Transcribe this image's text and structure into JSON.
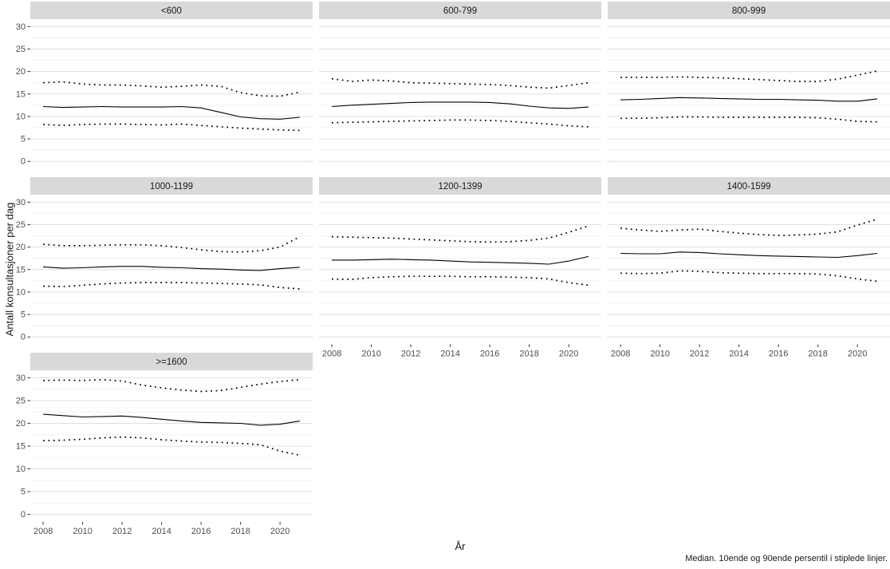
{
  "figure": {
    "ylabel": "Antall konsultasjoner per dag",
    "xlabel": "År",
    "caption": "Median. 10ende og 90ende persentil i stiplede linjer."
  },
  "chart_data": {
    "type": "line",
    "title": "",
    "xlabel": "År",
    "ylabel": "Antall konsultasjoner per dag",
    "caption": "Median. 10ende og 90ende persentil i stiplede linjer.",
    "facet_layout": "3 columns, 7 panels",
    "legend": "none",
    "grid": "horizontal-only",
    "x": [
      2008,
      2009,
      2010,
      2011,
      2012,
      2013,
      2014,
      2015,
      2016,
      2017,
      2018,
      2019,
      2020,
      2021
    ],
    "x_ticks": [
      2008,
      2010,
      2012,
      2014,
      2016,
      2018,
      2020
    ],
    "y_ticks": [
      0,
      5,
      10,
      15,
      20,
      25,
      30
    ],
    "xlim": [
      2007.35,
      2021.65
    ],
    "ylim": [
      -1.65,
      31.65
    ],
    "line_styles": {
      "median": "solid",
      "p10": "dotted",
      "p90": "dotted"
    },
    "colors": {
      "line": "#000000",
      "strip_bg": "#d9d9d9",
      "strip_text": "#1a1a1a",
      "grid_major": "#e0e0e0",
      "grid_minor": "#f0f0f0",
      "tick_label": "#4d4d4d",
      "background": "#ffffff"
    },
    "facets": [
      {
        "label": "<600",
        "series": {
          "p90": [
            17.5,
            17.7,
            17.2,
            17.0,
            17.0,
            16.8,
            16.5,
            16.7,
            17.0,
            16.7,
            15.3,
            14.6,
            14.5,
            15.4
          ],
          "median": [
            12.2,
            12.0,
            12.1,
            12.2,
            12.1,
            12.1,
            12.1,
            12.2,
            11.9,
            10.9,
            9.9,
            9.5,
            9.4,
            9.8
          ],
          "p10": [
            8.2,
            8.0,
            8.2,
            8.3,
            8.3,
            8.2,
            8.1,
            8.3,
            8.0,
            7.7,
            7.4,
            7.2,
            7.0,
            6.9
          ]
        }
      },
      {
        "label": "600-799",
        "series": {
          "p90": [
            18.4,
            17.8,
            18.1,
            17.9,
            17.5,
            17.4,
            17.3,
            17.2,
            17.1,
            16.9,
            16.5,
            16.3,
            16.9,
            17.5
          ],
          "median": [
            12.2,
            12.5,
            12.7,
            12.9,
            13.1,
            13.2,
            13.2,
            13.2,
            13.1,
            12.8,
            12.3,
            11.9,
            11.8,
            12.1
          ],
          "p10": [
            8.6,
            8.7,
            8.8,
            8.9,
            9.0,
            9.1,
            9.2,
            9.2,
            9.1,
            8.9,
            8.6,
            8.3,
            7.9,
            7.7
          ]
        }
      },
      {
        "label": "800-999",
        "series": {
          "p90": [
            18.7,
            18.7,
            18.7,
            18.8,
            18.7,
            18.6,
            18.4,
            18.2,
            18.0,
            17.8,
            17.8,
            18.3,
            19.2,
            20.1
          ],
          "median": [
            13.7,
            13.8,
            14.0,
            14.2,
            14.1,
            14.0,
            13.9,
            13.8,
            13.8,
            13.7,
            13.6,
            13.4,
            13.4,
            13.9
          ],
          "p10": [
            9.6,
            9.6,
            9.7,
            9.9,
            9.9,
            9.8,
            9.8,
            9.8,
            9.8,
            9.8,
            9.7,
            9.4,
            8.9,
            8.8
          ]
        }
      },
      {
        "label": "1000-1199",
        "series": {
          "p90": [
            20.6,
            20.3,
            20.3,
            20.4,
            20.5,
            20.5,
            20.3,
            19.9,
            19.4,
            19.0,
            18.9,
            19.2,
            20.0,
            22.3
          ],
          "median": [
            15.6,
            15.3,
            15.4,
            15.6,
            15.7,
            15.7,
            15.5,
            15.4,
            15.2,
            15.1,
            14.9,
            14.8,
            15.2,
            15.5
          ],
          "p10": [
            11.3,
            11.2,
            11.5,
            11.8,
            12.0,
            12.1,
            12.1,
            12.1,
            12.0,
            11.9,
            11.8,
            11.6,
            11.0,
            10.7
          ]
        }
      },
      {
        "label": "1200-1399",
        "series": {
          "p90": [
            22.3,
            22.2,
            22.1,
            22.0,
            21.8,
            21.6,
            21.4,
            21.2,
            21.1,
            21.2,
            21.5,
            22.0,
            23.3,
            24.7
          ],
          "median": [
            17.1,
            17.1,
            17.2,
            17.3,
            17.2,
            17.1,
            16.9,
            16.7,
            16.6,
            16.5,
            16.4,
            16.2,
            16.9,
            17.9
          ],
          "p10": [
            12.9,
            12.8,
            13.2,
            13.4,
            13.5,
            13.5,
            13.5,
            13.4,
            13.4,
            13.3,
            13.2,
            12.9,
            12.1,
            11.5
          ]
        }
      },
      {
        "label": "1400-1599",
        "series": {
          "p90": [
            24.2,
            23.8,
            23.5,
            23.8,
            24.0,
            23.5,
            23.1,
            22.8,
            22.6,
            22.7,
            22.9,
            23.4,
            24.9,
            26.2
          ],
          "median": [
            18.6,
            18.5,
            18.5,
            18.9,
            18.8,
            18.5,
            18.3,
            18.1,
            18.0,
            17.9,
            17.8,
            17.7,
            18.1,
            18.6
          ],
          "p10": [
            14.2,
            14.1,
            14.2,
            14.7,
            14.6,
            14.3,
            14.2,
            14.1,
            14.1,
            14.1,
            14.0,
            13.6,
            12.9,
            12.4
          ]
        }
      },
      {
        "label": ">=1600",
        "series": {
          "p90": [
            29.4,
            29.5,
            29.4,
            29.6,
            29.3,
            28.4,
            27.8,
            27.3,
            27.0,
            27.2,
            27.9,
            28.6,
            29.2,
            29.6
          ],
          "median": [
            22.0,
            21.7,
            21.4,
            21.5,
            21.6,
            21.3,
            20.9,
            20.5,
            20.2,
            20.1,
            20.0,
            19.6,
            19.8,
            20.5
          ],
          "p10": [
            16.2,
            16.3,
            16.5,
            16.8,
            17.0,
            16.8,
            16.4,
            16.1,
            15.9,
            15.8,
            15.6,
            15.3,
            13.9,
            13.0
          ]
        }
      }
    ]
  }
}
